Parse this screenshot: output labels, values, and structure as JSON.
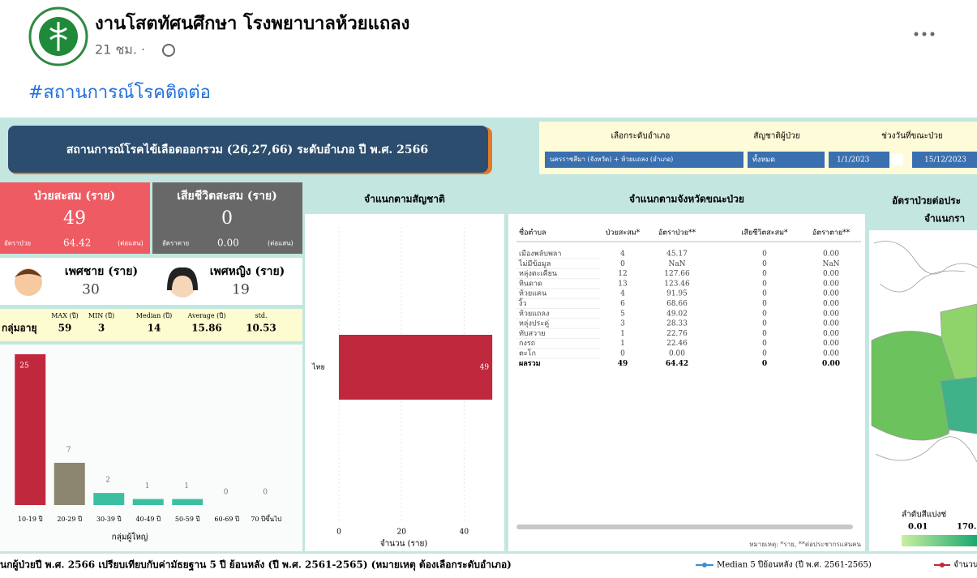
{
  "post": {
    "author": "งานโสตทัศนศึกษา โรงพยาบาลห้วยแถลง",
    "time": "21 ชม. ·",
    "hashtag": "#สถานการณ์โรคติดต่อ"
  },
  "dashboard": {
    "title": "สถานการณ์โรคไข้เลือดออกรวม (26,27,66) ระดับอำเภอ ปี พ.ศ. 2566",
    "filters": [
      {
        "label": "เลือกระดับอำเภอ",
        "value": "นครราชสีมา (จังหวัด) + ห้วยแถลง (อำเภอ)"
      },
      {
        "label": "สัญชาติผู้ป่วย",
        "value": "ทั้งหมด"
      },
      {
        "label": "ช่วงวันที่ขณะป่วย",
        "start": "1/1/2023",
        "end": "15/12/2023"
      }
    ],
    "cases": {
      "label": "ป่วยสะสม (ราย)",
      "value": "49",
      "rate_label": "อัตราป่วย",
      "rate": "64.42",
      "unit": "(ต่อแสน)"
    },
    "deaths": {
      "label": "เสียชีวิตสะสม (ราย)",
      "value": "0",
      "rate_label": "อัตราตาย",
      "rate": "0.00",
      "unit": "(ต่อแสน)"
    },
    "male": {
      "label": "เพศชาย (ราย)",
      "value": "30"
    },
    "female": {
      "label": "เพศหญิง (ราย)",
      "value": "19"
    },
    "age_stats": {
      "label": "กลุ่มอายุ",
      "items": [
        {
          "label": "MAX (ปี)",
          "value": "59"
        },
        {
          "label": "MIN (ปี)",
          "value": "3"
        },
        {
          "label": "Median (ปี)",
          "value": "14"
        },
        {
          "label": "Average (ปี)",
          "value": "15.86"
        },
        {
          "label": "std.",
          "value": "10.53"
        }
      ]
    },
    "age_chart": {
      "type": "bar",
      "xlabel": "กลุ่มผู้ใหญ่",
      "categories": [
        "10-19 ปี",
        "20-29 ปี",
        "30-39 ปี",
        "40-49 ปี",
        "50-59 ปี",
        "60-69 ปี",
        "70 ปีขึ้นไป"
      ],
      "values": [
        25,
        7,
        2,
        1,
        1,
        0,
        0
      ],
      "colors": [
        "#c0283e",
        "#8c8570",
        "#3cbfa0",
        "#3cbfa0",
        "#3cbfa0",
        "#3cbfa0",
        "#3cbfa0"
      ]
    },
    "nationality_chart": {
      "type": "bar",
      "title": "จำแนกตามสัญชาติ",
      "categories": [
        "ไทย"
      ],
      "values": [
        49
      ],
      "color": "#c0283e",
      "xlim": [
        0,
        50
      ],
      "xticks": [
        0,
        20,
        40
      ],
      "xlabel": "จำนวน (ราย)"
    },
    "table": {
      "title": "จำแนกตามจังหวัดขณะป่วย",
      "columns": [
        "ชื่อตำบล",
        "ป่วยสะสม*",
        "อัตราป่วย**",
        "เสียชีวิตสะสม*",
        "อัตราตาย**"
      ],
      "rows": [
        [
          "เมืองพลับพลา",
          "4",
          "45.17",
          "0",
          "0.00"
        ],
        [
          "ไม่มีข้อมูล",
          "0",
          "NaN",
          "0",
          "NaN"
        ],
        [
          "หลุ่งตะเคียน",
          "12",
          "127.66",
          "0",
          "0.00"
        ],
        [
          "หินดาด",
          "13",
          "123.46",
          "0",
          "0.00"
        ],
        [
          "ห้วยแคน",
          "4",
          "91.95",
          "0",
          "0.00"
        ],
        [
          "งิ้ว",
          "6",
          "68.66",
          "0",
          "0.00"
        ],
        [
          "ห้วยแถลง",
          "5",
          "49.02",
          "0",
          "0.00"
        ],
        [
          "หลุ่งประดู่",
          "3",
          "28.33",
          "0",
          "0.00"
        ],
        [
          "ทับสวาย",
          "1",
          "22.76",
          "0",
          "0.00"
        ],
        [
          "กงรถ",
          "1",
          "22.46",
          "0",
          "0.00"
        ],
        [
          "ตะโก",
          "0",
          "0.00",
          "0",
          "0.00"
        ]
      ],
      "total": [
        "ผลรวม",
        "49",
        "64.42",
        "0",
        "0.00"
      ],
      "note": "หมายเหตุ: *ราย, **ต่อประชากรแสนคน"
    },
    "map": {
      "title": [
        "อัตราป่วยต่อประ",
        "จำแนกรา"
      ],
      "legend_title": "ลำดับสีแบ่งช่",
      "legend_min": "0.01",
      "legend_max": "170."
    },
    "footer": {
      "text": "นกผู้ป่วยปี พ.ศ. 2566 เปรียบเทียบกับค่ามัธยฐาน 5 ปี ย้อนหลัง (ปี พ.ศ. 2561-2565) (หมายเหตุ ต้องเลือกระดับอำเภอ)",
      "legend": [
        "Median 5 ปีย้อนหลัง (ปี พ.ศ. 2561-2565)",
        "จำนวน"
      ]
    }
  }
}
